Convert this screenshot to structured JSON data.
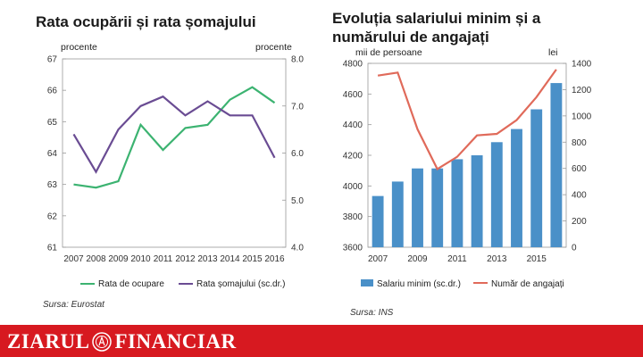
{
  "left_chart_title": "Rata ocupării și rata șomajului",
  "right_chart_title": "Evoluția salariului minim și a numărului de angajați",
  "chart_data": [
    {
      "type": "line",
      "title": "Rata ocupării și rata șomajului",
      "x": [
        2007,
        2008,
        2009,
        2010,
        2011,
        2012,
        2013,
        2014,
        2015,
        2016
      ],
      "ylabel_left": "procente",
      "ylabel_right": "procente",
      "ylim_left": [
        61,
        67
      ],
      "ylim_right": [
        4.0,
        8.0
      ],
      "yticks_left": [
        "61",
        "62",
        "63",
        "64",
        "65",
        "66",
        "67"
      ],
      "yticks_right": [
        "4.0",
        "5.0",
        "6.0",
        "7.0",
        "8.0"
      ],
      "grid": false,
      "legend_position": "bottom",
      "series": [
        {
          "name": "Rata de ocupare",
          "axis": "left",
          "color": "#3cb371",
          "values": [
            63.0,
            62.9,
            63.1,
            64.9,
            64.1,
            64.8,
            64.9,
            65.7,
            66.1,
            65.6
          ]
        },
        {
          "name": "Rata șomajului (sc.dr.)",
          "axis": "right",
          "color": "#6a4c93",
          "values": [
            6.4,
            5.6,
            6.5,
            7.0,
            7.2,
            6.8,
            7.1,
            6.8,
            6.8,
            5.9
          ]
        }
      ],
      "source": "Sursa: Eurostat"
    },
    {
      "type": "bar",
      "title": "Evoluția salariului minim și a numărului de angajați",
      "x": [
        2007,
        2008,
        2009,
        2010,
        2011,
        2012,
        2013,
        2014,
        2015,
        2016
      ],
      "xticks": [
        "2007",
        "2009",
        "2011",
        "2013",
        "2015"
      ],
      "ylabel_left": "mii de persoane",
      "ylabel_right": "lei",
      "ylim_left": [
        3600,
        4800
      ],
      "ylim_right": [
        0,
        1400
      ],
      "yticks_left": [
        "3600",
        "3800",
        "4000",
        "4200",
        "4400",
        "4600",
        "4800"
      ],
      "yticks_right": [
        "0",
        "200",
        "400",
        "600",
        "800",
        "1000",
        "1200",
        "1400"
      ],
      "grid": false,
      "legend_position": "bottom",
      "series": [
        {
          "name": "Salariu minim (sc.dr.)",
          "kind": "bar",
          "axis": "right",
          "color": "#4a90c8",
          "values": [
            390,
            500,
            600,
            600,
            670,
            700,
            800,
            900,
            1050,
            1250
          ]
        },
        {
          "name": "Număr de angajați",
          "kind": "line",
          "axis": "left",
          "color": "#e06a5a",
          "values": [
            4720,
            4740,
            4370,
            4110,
            4190,
            4330,
            4340,
            4430,
            4580,
            4760
          ]
        }
      ],
      "source": "Sursa: INS"
    }
  ],
  "footer": {
    "logo_left": "ZIARUL",
    "logo_right": "FINANCIAR",
    "logo_icon": "zf-seal-icon",
    "background": "#d71920"
  }
}
